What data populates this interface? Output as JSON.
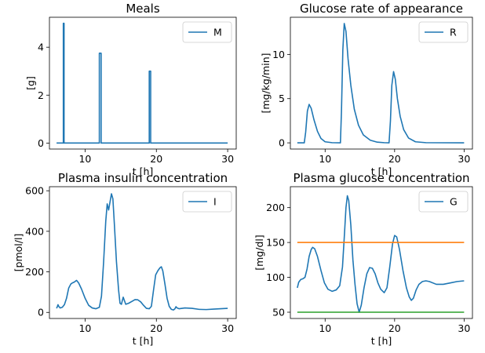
{
  "chart_data": [
    {
      "type": "line",
      "title": "Meals",
      "xlabel": "t [h]",
      "ylabel": "[g]",
      "xlim": [
        5,
        31.2
      ],
      "ylim": [
        -0.25,
        5.25
      ],
      "xticks": [
        10,
        20,
        30
      ],
      "yticks": [
        0,
        2,
        4
      ],
      "legend_position": "upper right",
      "series": [
        {
          "name": "M",
          "color": "#1f77b4",
          "points": [
            [
              6,
              0
            ],
            [
              6.95,
              0
            ],
            [
              6.95,
              5
            ],
            [
              7.05,
              5
            ],
            [
              7.05,
              0
            ],
            [
              12.0,
              0
            ],
            [
              12.0,
              3.75
            ],
            [
              12.25,
              3.75
            ],
            [
              12.25,
              0
            ],
            [
              19.0,
              0
            ],
            [
              19.0,
              3.0
            ],
            [
              19.2,
              3.0
            ],
            [
              19.2,
              0
            ],
            [
              30,
              0
            ]
          ]
        }
      ]
    },
    {
      "type": "line",
      "title": "Glucose rate of appearance",
      "xlabel": "t [h]",
      "ylabel": "[mg/kg/min]",
      "xlim": [
        5,
        31.2
      ],
      "ylim": [
        -0.7,
        14.2
      ],
      "xticks": [
        10,
        20,
        30
      ],
      "yticks": [
        0,
        5,
        10
      ],
      "legend_position": "upper right",
      "series": [
        {
          "name": "R",
          "color": "#1f77b4",
          "points": [
            [
              6,
              0
            ],
            [
              7.0,
              0
            ],
            [
              7.2,
              1.2
            ],
            [
              7.45,
              3.6
            ],
            [
              7.7,
              4.35
            ],
            [
              8.0,
              3.9
            ],
            [
              8.4,
              2.6
            ],
            [
              8.9,
              1.3
            ],
            [
              9.4,
              0.5
            ],
            [
              10,
              0.12
            ],
            [
              11,
              0.02
            ],
            [
              12.2,
              0
            ],
            [
              12.35,
              3.5
            ],
            [
              12.55,
              10.5
            ],
            [
              12.75,
              13.5
            ],
            [
              13.0,
              12.6
            ],
            [
              13.3,
              9.5
            ],
            [
              13.7,
              6.5
            ],
            [
              14.2,
              3.8
            ],
            [
              14.8,
              2.0
            ],
            [
              15.5,
              0.9
            ],
            [
              16.5,
              0.3
            ],
            [
              17.5,
              0.08
            ],
            [
              18.5,
              0.02
            ],
            [
              19.2,
              0
            ],
            [
              19.4,
              2.5
            ],
            [
              19.6,
              6.5
            ],
            [
              19.85,
              8.05
            ],
            [
              20.1,
              7.2
            ],
            [
              20.4,
              5.0
            ],
            [
              20.8,
              3.0
            ],
            [
              21.3,
              1.5
            ],
            [
              22.0,
              0.55
            ],
            [
              23.0,
              0.12
            ],
            [
              24.5,
              0.02
            ],
            [
              30,
              0
            ]
          ]
        }
      ]
    },
    {
      "type": "line",
      "title": "Plasma insulin concentration",
      "xlabel": "t [h]",
      "ylabel": "[pmol/l]",
      "xlim": [
        5,
        31.2
      ],
      "ylim": [
        -30,
        620
      ],
      "xticks": [
        10,
        20,
        30
      ],
      "yticks": [
        0,
        200,
        400,
        600
      ],
      "legend_position": "upper right",
      "series": [
        {
          "name": "I",
          "color": "#1f77b4",
          "points": [
            [
              6.0,
              20
            ],
            [
              6.1,
              28
            ],
            [
              6.2,
              38
            ],
            [
              6.3,
              30
            ],
            [
              6.5,
              22
            ],
            [
              6.8,
              25
            ],
            [
              7.1,
              38
            ],
            [
              7.4,
              70
            ],
            [
              7.7,
              120
            ],
            [
              8.0,
              140
            ],
            [
              8.2,
              145
            ],
            [
              8.5,
              150
            ],
            [
              8.8,
              158
            ],
            [
              9.1,
              145
            ],
            [
              9.5,
              115
            ],
            [
              10.0,
              70
            ],
            [
              10.5,
              35
            ],
            [
              11.0,
              22
            ],
            [
              11.5,
              18
            ],
            [
              12.0,
              25
            ],
            [
              12.3,
              80
            ],
            [
              12.6,
              250
            ],
            [
              12.9,
              450
            ],
            [
              13.1,
              535
            ],
            [
              13.3,
              505
            ],
            [
              13.5,
              545
            ],
            [
              13.7,
              585
            ],
            [
              13.9,
              560
            ],
            [
              14.1,
              440
            ],
            [
              14.4,
              250
            ],
            [
              14.7,
              110
            ],
            [
              14.9,
              45
            ],
            [
              15.1,
              40
            ],
            [
              15.2,
              55
            ],
            [
              15.35,
              75
            ],
            [
              15.5,
              60
            ],
            [
              15.7,
              40
            ],
            [
              16.1,
              45
            ],
            [
              16.6,
              55
            ],
            [
              17.0,
              63
            ],
            [
              17.4,
              62
            ],
            [
              17.8,
              52
            ],
            [
              18.2,
              35
            ],
            [
              18.6,
              20
            ],
            [
              19.0,
              18
            ],
            [
              19.3,
              30
            ],
            [
              19.6,
              110
            ],
            [
              19.9,
              185
            ],
            [
              20.2,
              205
            ],
            [
              20.5,
              220
            ],
            [
              20.7,
              225
            ],
            [
              20.9,
              205
            ],
            [
              21.2,
              140
            ],
            [
              21.5,
              70
            ],
            [
              21.8,
              30
            ],
            [
              22.1,
              15
            ],
            [
              22.4,
              12
            ],
            [
              22.6,
              18
            ],
            [
              22.75,
              28
            ],
            [
              22.9,
              22
            ],
            [
              23.2,
              18
            ],
            [
              24.0,
              22
            ],
            [
              25.0,
              20
            ],
            [
              26.0,
              15
            ],
            [
              27.0,
              14
            ],
            [
              28.0,
              16
            ],
            [
              29.0,
              18
            ],
            [
              30.0,
              20
            ]
          ]
        }
      ]
    },
    {
      "type": "line",
      "title": "Plasma glucose concentration",
      "xlabel": "t [h]",
      "ylabel": "[mg/dl]",
      "xlim": [
        5,
        31.2
      ],
      "ylim": [
        41,
        230
      ],
      "xticks": [
        10,
        20,
        30
      ],
      "yticks": [
        50,
        100,
        150,
        200
      ],
      "legend_position": "upper right",
      "series": [
        {
          "name": "G",
          "color": "#1f77b4",
          "points": [
            [
              6.0,
              85
            ],
            [
              6.2,
              93
            ],
            [
              6.5,
              97
            ],
            [
              6.8,
              98
            ],
            [
              7.1,
              100
            ],
            [
              7.4,
              112
            ],
            [
              7.7,
              130
            ],
            [
              8.0,
              140
            ],
            [
              8.2,
              143
            ],
            [
              8.5,
              141
            ],
            [
              8.9,
              130
            ],
            [
              9.4,
              110
            ],
            [
              9.9,
              92
            ],
            [
              10.4,
              83
            ],
            [
              11.0,
              80
            ],
            [
              11.6,
              82
            ],
            [
              12.1,
              88
            ],
            [
              12.5,
              115
            ],
            [
              12.8,
              165
            ],
            [
              13.0,
              200
            ],
            [
              13.2,
              217
            ],
            [
              13.4,
              210
            ],
            [
              13.7,
              175
            ],
            [
              14.0,
              125
            ],
            [
              14.3,
              90
            ],
            [
              14.6,
              62
            ],
            [
              14.9,
              50
            ],
            [
              15.2,
              60
            ],
            [
              15.6,
              85
            ],
            [
              16.0,
              105
            ],
            [
              16.4,
              114
            ],
            [
              16.8,
              113
            ],
            [
              17.2,
              105
            ],
            [
              17.6,
              92
            ],
            [
              18.0,
              83
            ],
            [
              18.5,
              78
            ],
            [
              18.9,
              85
            ],
            [
              19.3,
              115
            ],
            [
              19.7,
              148
            ],
            [
              20.0,
              160
            ],
            [
              20.3,
              158
            ],
            [
              20.7,
              140
            ],
            [
              21.2,
              110
            ],
            [
              21.7,
              85
            ],
            [
              22.1,
              72
            ],
            [
              22.4,
              67
            ],
            [
              22.7,
              70
            ],
            [
              23.1,
              82
            ],
            [
              23.5,
              90
            ],
            [
              24.0,
              94
            ],
            [
              24.5,
              95
            ],
            [
              25.0,
              94
            ],
            [
              26.0,
              90
            ],
            [
              27.0,
              90
            ],
            [
              28.0,
              92
            ],
            [
              29.0,
              94
            ],
            [
              30.0,
              95
            ]
          ]
        },
        {
          "name": "",
          "color": "#ff7f0e",
          "points": [
            [
              6,
              150
            ],
            [
              30,
              150
            ]
          ]
        },
        {
          "name": "",
          "color": "#2ca02c",
          "points": [
            [
              6,
              50
            ],
            [
              30,
              50
            ]
          ]
        }
      ]
    }
  ]
}
